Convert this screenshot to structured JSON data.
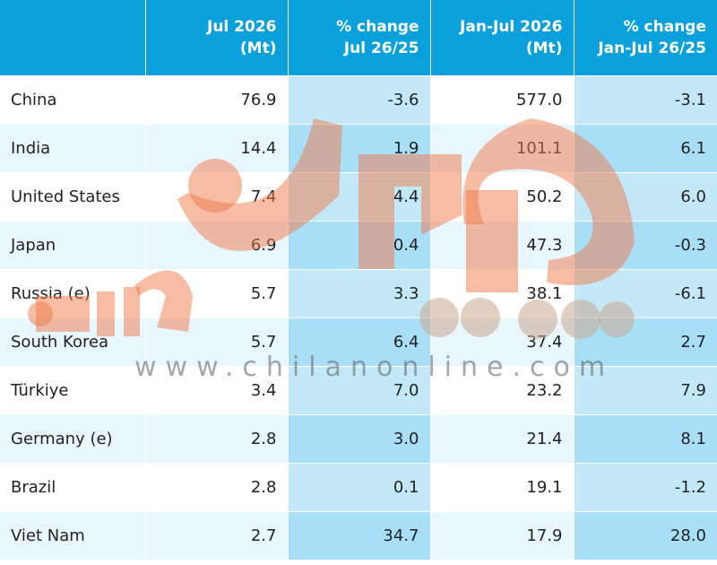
{
  "table": {
    "headers": [
      {
        "line1": "",
        "line2": ""
      },
      {
        "line1": "Jul 2026",
        "line2": "(Mt)"
      },
      {
        "line1": "% change",
        "line2": "Jul 26/25"
      },
      {
        "line1": "Jan-Jul 2026",
        "line2": "(Mt)"
      },
      {
        "line1": "% change",
        "line2": "Jan-Jul 26/25"
      }
    ],
    "rows": [
      {
        "country": "China",
        "jul": "76.9",
        "jul_chg": "-3.6",
        "ytd": "577.0",
        "ytd_chg": "-3.1"
      },
      {
        "country": "India",
        "jul": "14.4",
        "jul_chg": "1.9",
        "ytd": "101.1",
        "ytd_chg": "6.1"
      },
      {
        "country": "United States",
        "jul": "7.4",
        "jul_chg": "4.4",
        "ytd": "50.2",
        "ytd_chg": "6.0"
      },
      {
        "country": "Japan",
        "jul": "6.9",
        "jul_chg": "0.4",
        "ytd": "47.3",
        "ytd_chg": "-0.3"
      },
      {
        "country": "Russia (e)",
        "jul": "5.7",
        "jul_chg": "3.3",
        "ytd": "38.1",
        "ytd_chg": "-6.1"
      },
      {
        "country": "South Korea",
        "jul": "5.7",
        "jul_chg": "6.4",
        "ytd": "37.4",
        "ytd_chg": "2.7"
      },
      {
        "country": "Türkiye",
        "jul": "3.4",
        "jul_chg": "7.0",
        "ytd": "23.2",
        "ytd_chg": "7.9"
      },
      {
        "country": "Germany (e)",
        "jul": "2.8",
        "jul_chg": "3.0",
        "ytd": "21.4",
        "ytd_chg": "8.1"
      },
      {
        "country": "Brazil",
        "jul": "2.8",
        "jul_chg": "0.1",
        "ytd": "19.1",
        "ytd_chg": "-1.2"
      },
      {
        "country": "Viet Nam",
        "jul": "2.7",
        "jul_chg": "34.7",
        "ytd": "17.9",
        "ytd_chg": "28.0"
      }
    ]
  },
  "watermark": {
    "url": "www.chilanonline.com",
    "logo_color": "#f07a4a"
  },
  "colors": {
    "header_bg": "#0aa0dc",
    "row_light": "#ffffff",
    "row_alt": "#e8f6fd",
    "change_col_light": "#c3e9f9",
    "change_col_dark": "#a9dff6"
  }
}
